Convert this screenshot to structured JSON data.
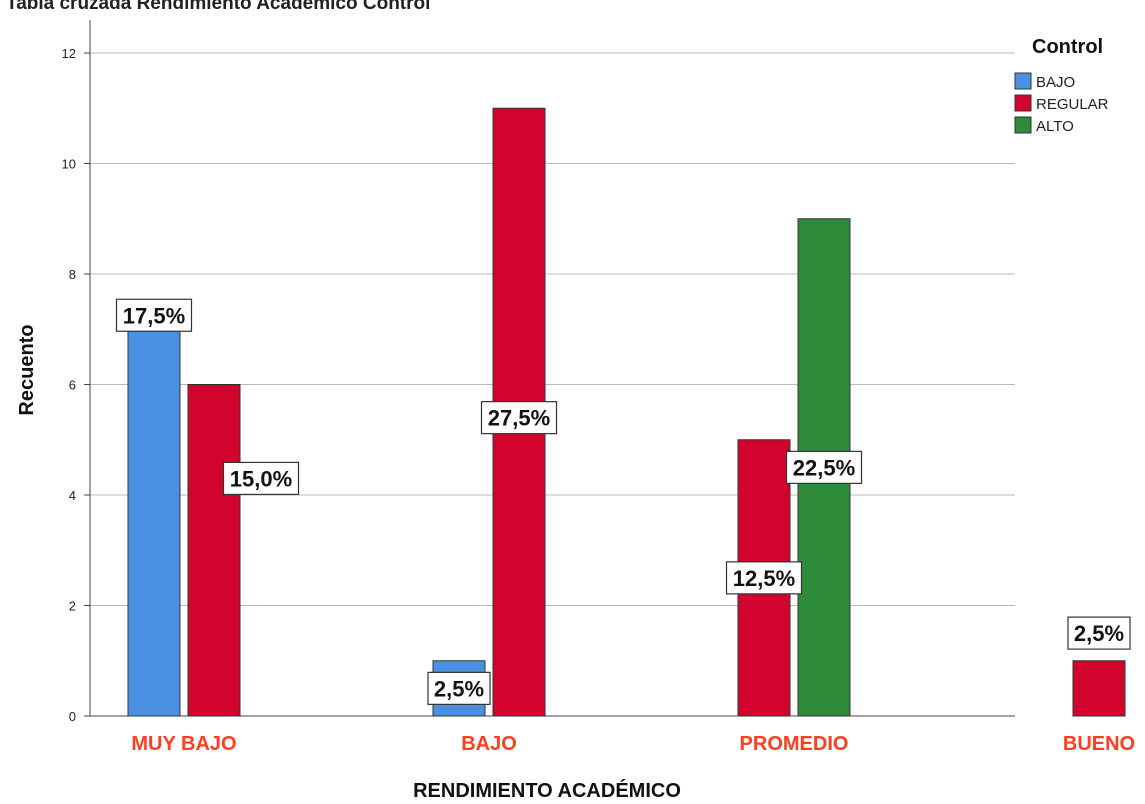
{
  "chart_data": {
    "type": "bar",
    "title": "Tabla cruzada Rendimiento Académico Control",
    "xlabel": "RENDIMIENTO ACADÉMICO",
    "ylabel": "Recuento",
    "ylim": [
      0,
      12
    ],
    "yticks": [
      0,
      2,
      4,
      6,
      8,
      10,
      12
    ],
    "grid": true,
    "legend_title": "Control",
    "legend_position": "top-right",
    "categories": [
      "MUY BAJO",
      "BAJO",
      "PROMEDIO",
      "BUENO"
    ],
    "category_label_color": "#ff3d1f",
    "series": [
      {
        "name": "BAJO",
        "color": "#4a90e2",
        "values": [
          7,
          1,
          null,
          null
        ],
        "labels": [
          "17,5%",
          "2,5%",
          null,
          null
        ]
      },
      {
        "name": "REGULAR",
        "color": "#d2042d",
        "values": [
          6,
          11,
          5,
          1
        ],
        "labels": [
          "15,0%",
          "27,5%",
          "12,5%",
          "2,5%"
        ]
      },
      {
        "name": "ALTO",
        "color": "#2e8b3a",
        "values": [
          null,
          null,
          9,
          null
        ],
        "labels": [
          null,
          null,
          "22,5%",
          null
        ]
      }
    ]
  }
}
